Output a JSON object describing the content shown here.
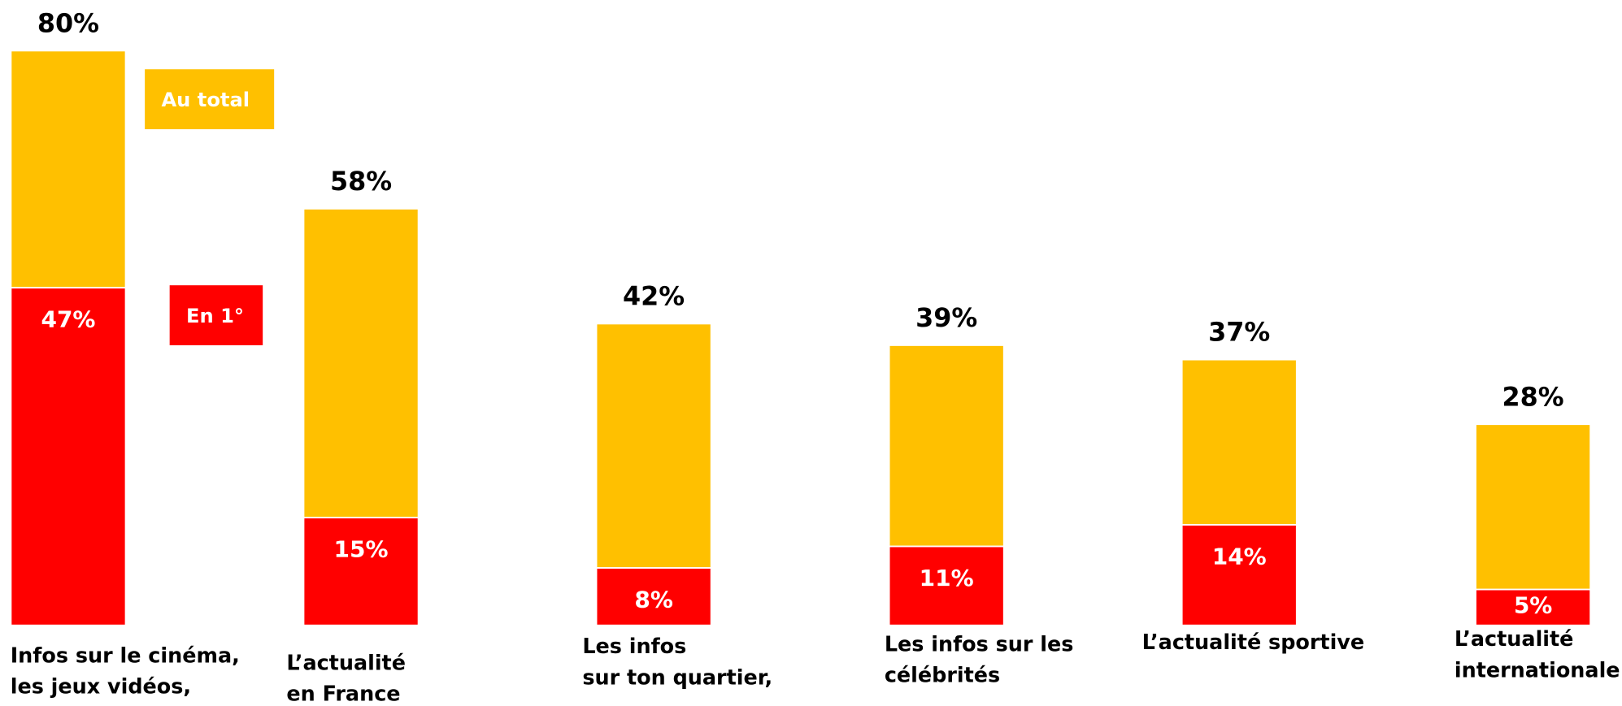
{
  "chart_data": {
    "type": "bar",
    "overlap": true,
    "categories": [
      "Infos sur le cinéma,\nles jeux vidéos,",
      "L’actualité\nen France",
      "Les infos\nsur ton quartier,",
      "Les infos sur les\ncélébrités",
      "L’actualité sportive",
      "L’actualité\ninternationale"
    ],
    "series": [
      {
        "name": "Au total",
        "color": "#FFC000",
        "values": [
          80,
          58,
          42,
          39,
          37,
          28
        ],
        "value_labels": [
          "80%",
          "58%",
          "42%",
          "39%",
          "37%",
          "28%"
        ]
      },
      {
        "name": "En 1°",
        "color": "#FF0000",
        "values": [
          47,
          15,
          8,
          11,
          14,
          5
        ],
        "value_labels": [
          "47%",
          "15%",
          "8%",
          "11%",
          "14%",
          "5%"
        ]
      }
    ],
    "ylim": [
      0,
      80
    ]
  }
}
